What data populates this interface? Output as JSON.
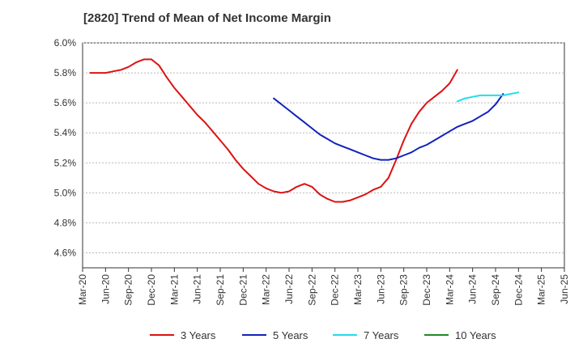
{
  "chart_data": {
    "type": "line",
    "title": "[2820]  Trend of Mean of Net Income Margin",
    "xlabel": "",
    "ylabel": "",
    "x_ticks": [
      "Mar-20",
      "Jun-20",
      "Sep-20",
      "Dec-20",
      "Mar-21",
      "Jun-21",
      "Sep-21",
      "Dec-21",
      "Mar-22",
      "Jun-22",
      "Sep-22",
      "Dec-22",
      "Mar-23",
      "Jun-23",
      "Sep-23",
      "Dec-23",
      "Mar-24",
      "Jun-24",
      "Sep-24",
      "Dec-24",
      "Mar-25",
      "Jun-25"
    ],
    "y_ticks": [
      "4.6%",
      "4.8%",
      "5.0%",
      "5.2%",
      "5.4%",
      "5.6%",
      "5.8%",
      "6.0%"
    ],
    "ylim": [
      4.5,
      6.0
    ],
    "grid": "horizontal-dashed",
    "legend_position": "bottom",
    "series": [
      {
        "name": "3 Years",
        "color": "#dd1111",
        "points": [
          [
            1,
            5.8
          ],
          [
            2,
            5.8
          ],
          [
            3,
            5.8
          ],
          [
            4,
            5.81
          ],
          [
            5,
            5.82
          ],
          [
            6,
            5.84
          ],
          [
            7,
            5.87
          ],
          [
            8,
            5.89
          ],
          [
            9,
            5.89
          ],
          [
            10,
            5.85
          ],
          [
            11,
            5.77
          ],
          [
            12,
            5.7
          ],
          [
            13,
            5.64
          ],
          [
            14,
            5.58
          ],
          [
            15,
            5.52
          ],
          [
            16,
            5.47
          ],
          [
            17,
            5.41
          ],
          [
            18,
            5.35
          ],
          [
            19,
            5.29
          ],
          [
            20,
            5.22
          ],
          [
            21,
            5.16
          ],
          [
            22,
            5.11
          ],
          [
            23,
            5.06
          ],
          [
            24,
            5.03
          ],
          [
            25,
            5.01
          ],
          [
            26,
            5.0
          ],
          [
            27,
            5.01
          ],
          [
            28,
            5.04
          ],
          [
            29,
            5.06
          ],
          [
            30,
            5.04
          ],
          [
            31,
            4.99
          ],
          [
            32,
            4.96
          ],
          [
            33,
            4.94
          ],
          [
            34,
            4.94
          ],
          [
            35,
            4.95
          ],
          [
            36,
            4.97
          ],
          [
            37,
            4.99
          ],
          [
            38,
            5.02
          ],
          [
            39,
            5.04
          ],
          [
            40,
            5.1
          ],
          [
            41,
            5.22
          ],
          [
            42,
            5.35
          ],
          [
            43,
            5.46
          ],
          [
            44,
            5.54
          ],
          [
            45,
            5.6
          ],
          [
            46,
            5.64
          ],
          [
            47,
            5.68
          ],
          [
            48,
            5.73
          ],
          [
            49,
            5.82
          ]
        ]
      },
      {
        "name": "5 Years",
        "color": "#1122bb",
        "points": [
          [
            25,
            5.63
          ],
          [
            26,
            5.59
          ],
          [
            27,
            5.55
          ],
          [
            28,
            5.51
          ],
          [
            29,
            5.47
          ],
          [
            30,
            5.43
          ],
          [
            31,
            5.39
          ],
          [
            32,
            5.36
          ],
          [
            33,
            5.33
          ],
          [
            34,
            5.31
          ],
          [
            35,
            5.29
          ],
          [
            36,
            5.27
          ],
          [
            37,
            5.25
          ],
          [
            38,
            5.23
          ],
          [
            39,
            5.22
          ],
          [
            40,
            5.22
          ],
          [
            41,
            5.23
          ],
          [
            42,
            5.25
          ],
          [
            43,
            5.27
          ],
          [
            44,
            5.3
          ],
          [
            45,
            5.32
          ],
          [
            46,
            5.35
          ],
          [
            47,
            5.38
          ],
          [
            48,
            5.41
          ],
          [
            49,
            5.44
          ],
          [
            50,
            5.46
          ],
          [
            51,
            5.48
          ],
          [
            52,
            5.51
          ],
          [
            53,
            5.54
          ],
          [
            54,
            5.59
          ],
          [
            55,
            5.66
          ]
        ]
      },
      {
        "name": "7 Years",
        "color": "#22ddee",
        "points": [
          [
            49,
            5.61
          ],
          [
            50,
            5.63
          ],
          [
            51,
            5.64
          ],
          [
            52,
            5.65
          ],
          [
            53,
            5.65
          ],
          [
            54,
            5.65
          ],
          [
            55,
            5.65
          ],
          [
            56,
            5.66
          ],
          [
            57,
            5.67
          ]
        ]
      },
      {
        "name": "10 Years",
        "color": "#228822",
        "points": []
      }
    ]
  }
}
